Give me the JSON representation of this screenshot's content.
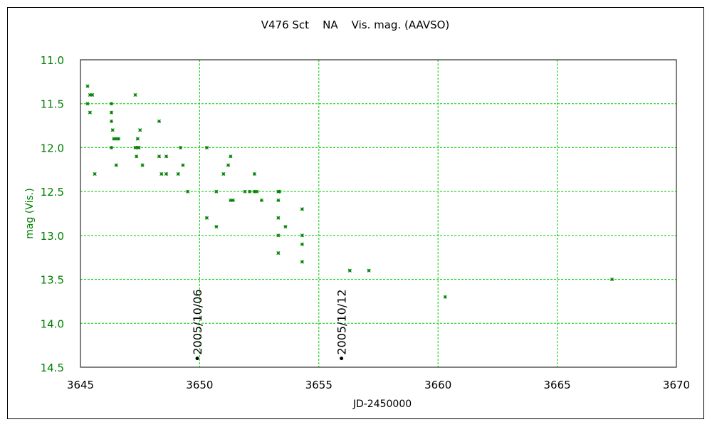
{
  "chart_data": {
    "type": "scatter",
    "title": "V476 Sct    NA    Vis. mag. (AAVSO)",
    "xlabel": "JD-2450000",
    "ylabel": "mag (Vis.)",
    "xlim": [
      3645,
      3670
    ],
    "ylim": [
      11.0,
      14.5
    ],
    "y_inverted": true,
    "grid": true,
    "x_ticks": [
      "3645",
      "3650",
      "3655",
      "3660",
      "3665",
      "3670"
    ],
    "y_ticks": [
      "11.0",
      "11.5",
      "12.0",
      "12.5",
      "13.0",
      "13.5",
      "14.0",
      "14.5"
    ],
    "x_tick_values": [
      3645,
      3650,
      3655,
      3660,
      3665,
      3670
    ],
    "y_tick_values": [
      11.0,
      11.5,
      12.0,
      12.5,
      13.0,
      13.5,
      14.0,
      14.5
    ],
    "series": [
      {
        "marker": "asterisk",
        "points": [
          [
            3645.3,
            11.3
          ],
          [
            3645.3,
            11.5
          ],
          [
            3645.4,
            11.4
          ],
          [
            3645.5,
            11.4
          ],
          [
            3645.4,
            11.6
          ],
          [
            3645.6,
            12.3
          ],
          [
            3646.3,
            11.5
          ],
          [
            3646.3,
            11.6
          ],
          [
            3646.3,
            11.7
          ],
          [
            3646.35,
            11.8
          ],
          [
            3646.4,
            11.9
          ],
          [
            3646.3,
            12.0
          ],
          [
            3646.5,
            11.9
          ],
          [
            3646.6,
            11.9
          ],
          [
            3646.5,
            12.2
          ],
          [
            3647.3,
            11.4
          ],
          [
            3647.3,
            12.0
          ],
          [
            3647.4,
            12.0
          ],
          [
            3647.45,
            12.0
          ],
          [
            3647.4,
            11.9
          ],
          [
            3647.5,
            11.8
          ],
          [
            3647.35,
            12.1
          ],
          [
            3647.6,
            12.2
          ],
          [
            3648.3,
            11.7
          ],
          [
            3648.3,
            12.1
          ],
          [
            3648.6,
            12.1
          ],
          [
            3648.4,
            12.3
          ],
          [
            3648.6,
            12.3
          ],
          [
            3649.2,
            12.0
          ],
          [
            3649.3,
            12.2
          ],
          [
            3649.1,
            12.3
          ],
          [
            3649.5,
            12.5
          ],
          [
            3650.3,
            12.0
          ],
          [
            3650.3,
            12.8
          ],
          [
            3650.7,
            12.5
          ],
          [
            3650.7,
            12.9
          ],
          [
            3651.0,
            12.3
          ],
          [
            3651.3,
            12.1
          ],
          [
            3651.2,
            12.2
          ],
          [
            3651.3,
            12.6
          ],
          [
            3651.4,
            12.6
          ],
          [
            3651.9,
            12.5
          ],
          [
            3652.1,
            12.5
          ],
          [
            3652.3,
            12.3
          ],
          [
            3652.3,
            12.5
          ],
          [
            3652.4,
            12.5
          ],
          [
            3652.6,
            12.6
          ],
          [
            3653.3,
            12.5
          ],
          [
            3653.35,
            12.5
          ],
          [
            3653.3,
            12.6
          ],
          [
            3653.3,
            12.8
          ],
          [
            3653.6,
            12.9
          ],
          [
            3653.3,
            13.0
          ],
          [
            3653.3,
            13.2
          ],
          [
            3654.3,
            12.7
          ],
          [
            3654.3,
            13.0
          ],
          [
            3654.3,
            13.1
          ],
          [
            3654.3,
            13.3
          ],
          [
            3656.3,
            13.4
          ],
          [
            3657.1,
            13.4
          ],
          [
            3660.3,
            13.7
          ],
          [
            3667.3,
            13.5
          ]
        ]
      }
    ],
    "annotations": [
      {
        "text": "2005/10/06",
        "x": 3649.9,
        "y": 14.4
      },
      {
        "text": "2005/10/12",
        "x": 3655.95,
        "y": 14.4
      }
    ]
  },
  "colors": {
    "axis": "#000000",
    "grid": "#00cc00",
    "data": "#008000",
    "tick_label": "#008000",
    "annotation_marker": "#000000",
    "frame_border": "#000000"
  }
}
